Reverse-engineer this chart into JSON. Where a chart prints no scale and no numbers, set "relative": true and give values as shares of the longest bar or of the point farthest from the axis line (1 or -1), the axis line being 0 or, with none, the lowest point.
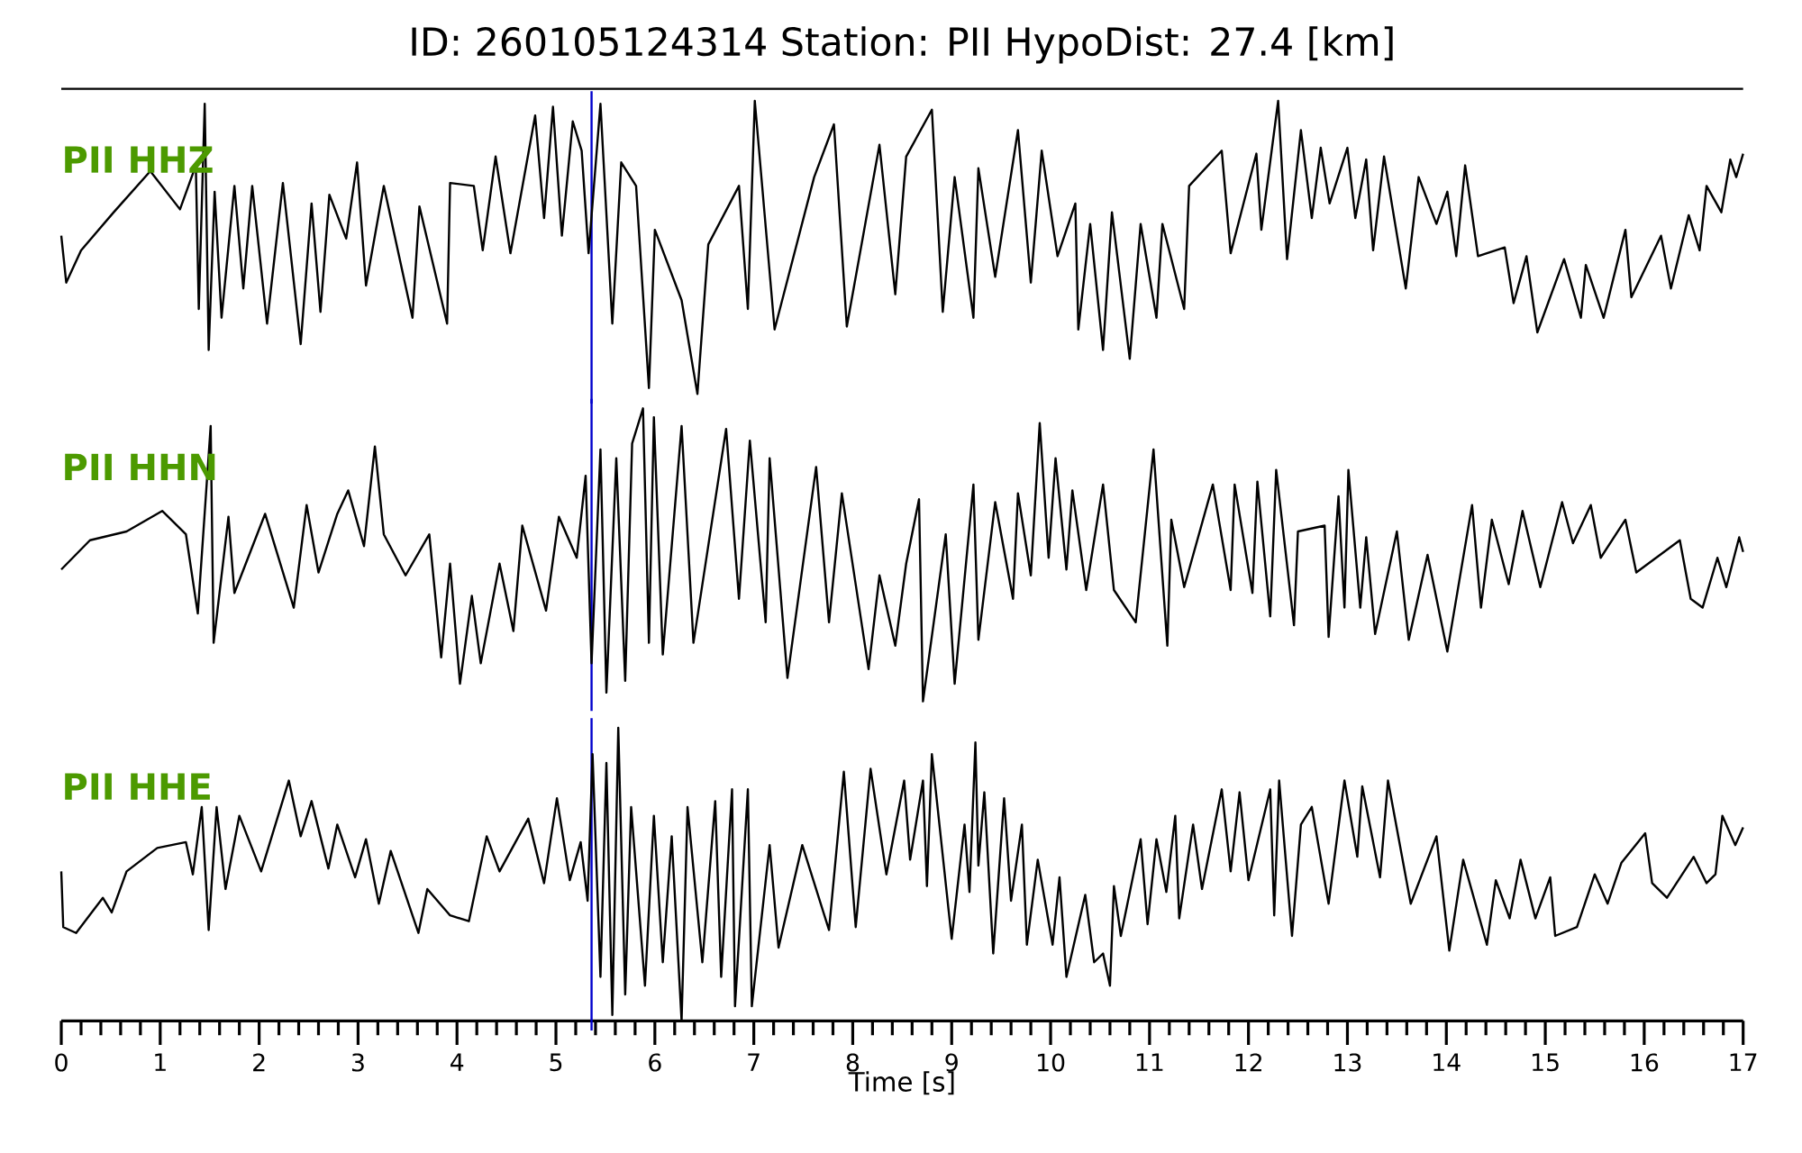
{
  "chart_data": [
    {
      "type": "line",
      "title": "ID: 260105124314   Station: PII   HypoDist:    27.4 [km]",
      "relative": true,
      "xlim": [
        0,
        17
      ],
      "tick_labels": false,
      "x": [
        0,
        0.05,
        0.2,
        0.53,
        0.9,
        1.2,
        1.36,
        1.39,
        1.45,
        1.49,
        1.55,
        1.62,
        1.75,
        1.84,
        1.93,
        2.08,
        2.24,
        2.42,
        2.53,
        2.62,
        2.71,
        2.88,
        2.99,
        3.08,
        3.26,
        3.55,
        3.62,
        3.9,
        3.93,
        4.17,
        4.26,
        4.39,
        4.54,
        4.79,
        4.88,
        4.97,
        5.06,
        5.17,
        5.26,
        5.33,
        5.45,
        5.57,
        5.66,
        5.81,
        5.94,
        6.0,
        6.27,
        6.43,
        6.54,
        6.85,
        6.94,
        7.01,
        7.21,
        7.61,
        7.81,
        7.94,
        8.27,
        8.43,
        8.54,
        8.8,
        8.91,
        9.03,
        9.22,
        9.27,
        9.44,
        9.67,
        9.8,
        9.91,
        10.07,
        10.25,
        10.28,
        10.4,
        10.53,
        10.62,
        10.8,
        10.91,
        11.07,
        11.13,
        11.35,
        11.4,
        11.73,
        11.82,
        12.08,
        12.13,
        12.3,
        12.39,
        12.53,
        12.64,
        12.73,
        12.82,
        13.0,
        13.08,
        13.19,
        13.26,
        13.37,
        13.59,
        13.72,
        13.9,
        14.01,
        14.1,
        14.19,
        14.32,
        14.59,
        14.68,
        14.81,
        14.92,
        15.19,
        15.36,
        15.41,
        15.59,
        15.81,
        15.87,
        16.17,
        16.27,
        16.45,
        16.56,
        16.63,
        16.78,
        16.87,
        16.93,
        17.0
      ],
      "series": [
        {
          "name": "PII HHZ",
          "color": "#000000",
          "values": [
            0.54,
            0.38,
            0.49,
            0.62,
            0.76,
            0.63,
            0.78,
            0.29,
            0.99,
            0.15,
            0.69,
            0.26,
            0.71,
            0.36,
            0.71,
            0.24,
            0.72,
            0.17,
            0.65,
            0.28,
            0.68,
            0.53,
            0.79,
            0.37,
            0.71,
            0.26,
            0.64,
            0.24,
            0.72,
            0.71,
            0.49,
            0.81,
            0.48,
            0.95,
            0.6,
            0.98,
            0.54,
            0.93,
            0.83,
            0.48,
            0.99,
            0.24,
            0.79,
            0.71,
            0.02,
            0.56,
            0.32,
            0,
            0.51,
            0.71,
            0.29,
            1,
            0.22,
            0.74,
            0.92,
            0.23,
            0.85,
            0.34,
            0.81,
            0.97,
            0.28,
            0.74,
            0.26,
            0.77,
            0.4,
            0.9,
            0.38,
            0.83,
            0.47,
            0.65,
            0.22,
            0.58,
            0.15,
            0.62,
            0.12,
            0.58,
            0.26,
            0.58,
            0.29,
            0.71,
            0.83,
            0.48,
            0.82,
            0.56,
            1,
            0.46,
            0.9,
            0.6,
            0.84,
            0.65,
            0.84,
            0.6,
            0.8,
            0.49,
            0.81,
            0.36,
            0.74,
            0.58,
            0.69,
            0.47,
            0.78,
            0.47,
            0.5,
            0.31,
            0.47,
            0.21,
            0.46,
            0.26,
            0.44,
            0.26,
            0.56,
            0.33,
            0.54,
            0.36,
            0.61,
            0.49,
            0.71,
            0.62,
            0.8,
            0.74,
            0.82
          ]
        }
      ],
      "ref_lines": [
        {
          "axis": "x",
          "value": 5.36,
          "color": "#0000cc"
        }
      ]
    },
    {
      "type": "line",
      "relative": true,
      "xlim": [
        0,
        17
      ],
      "tick_labels": false,
      "x": [
        0,
        0.29,
        0.66,
        1.02,
        1.26,
        1.38,
        1.51,
        1.54,
        1.69,
        1.75,
        2.06,
        2.35,
        2.48,
        2.6,
        2.79,
        2.9,
        3.06,
        3.17,
        3.26,
        3.48,
        3.72,
        3.84,
        3.93,
        4.03,
        4.15,
        4.24,
        4.43,
        4.57,
        4.66,
        4.9,
        5.03,
        5.21,
        5.3,
        5.36,
        5.45,
        5.51,
        5.61,
        5.7,
        5.77,
        5.88,
        5.94,
        5.99,
        6.08,
        6.27,
        6.39,
        6.72,
        6.85,
        6.96,
        7.12,
        7.16,
        7.34,
        7.63,
        7.76,
        7.89,
        8.16,
        8.27,
        8.43,
        8.54,
        8.67,
        8.71,
        8.94,
        9.03,
        9.22,
        9.27,
        9.44,
        9.62,
        9.67,
        9.8,
        9.89,
        9.98,
        10.05,
        10.16,
        10.22,
        10.36,
        10.53,
        10.64,
        10.86,
        11.04,
        11.18,
        11.22,
        11.35,
        11.64,
        11.82,
        11.86,
        12.04,
        12.09,
        12.22,
        12.28,
        12.46,
        12.5,
        12.77,
        12.81,
        12.91,
        12.97,
        13.01,
        13.13,
        13.19,
        13.28,
        13.5,
        13.62,
        13.81,
        14.01,
        14.26,
        14.35,
        14.46,
        14.63,
        14.77,
        14.95,
        15.17,
        15.28,
        15.46,
        15.56,
        15.81,
        15.92,
        16.36,
        16.47,
        16.59,
        16.74,
        16.83,
        16.96,
        17
      ],
      "series": [
        {
          "name": "PII HHN",
          "color": "#000000",
          "values": [
            0.45,
            0.55,
            0.58,
            0.65,
            0.57,
            0.3,
            0.94,
            0.2,
            0.63,
            0.37,
            0.64,
            0.32,
            0.67,
            0.44,
            0.64,
            0.72,
            0.53,
            0.87,
            0.57,
            0.43,
            0.57,
            0.15,
            0.47,
            0.06,
            0.36,
            0.13,
            0.47,
            0.24,
            0.6,
            0.31,
            0.63,
            0.49,
            0.77,
            0.13,
            0.86,
            0.03,
            0.83,
            0.07,
            0.88,
            1,
            0.2,
            0.97,
            0.16,
            0.94,
            0.2,
            0.93,
            0.35,
            0.89,
            0.27,
            0.83,
            0.08,
            0.8,
            0.27,
            0.71,
            0.11,
            0.43,
            0.19,
            0.47,
            0.69,
            0,
            0.57,
            0.06,
            0.74,
            0.21,
            0.68,
            0.35,
            0.71,
            0.43,
            0.95,
            0.49,
            0.83,
            0.45,
            0.72,
            0.38,
            0.74,
            0.38,
            0.27,
            0.86,
            0.19,
            0.62,
            0.39,
            0.74,
            0.38,
            0.74,
            0.37,
            0.75,
            0.29,
            0.79,
            0.26,
            0.58,
            0.6,
            0.22,
            0.7,
            0.32,
            0.79,
            0.32,
            0.56,
            0.23,
            0.58,
            0.21,
            0.5,
            0.17,
            0.67,
            0.32,
            0.62,
            0.4,
            0.65,
            0.39,
            0.68,
            0.54,
            0.67,
            0.49,
            0.62,
            0.44,
            0.55,
            0.35,
            0.32,
            0.49,
            0.39,
            0.56,
            0.51
          ]
        }
      ],
      "ref_lines": [
        {
          "axis": "x",
          "value": 5.36,
          "color": "#0000cc"
        }
      ]
    },
    {
      "type": "line",
      "relative": true,
      "xlabel": "Time [s]",
      "xlim": [
        0,
        17
      ],
      "xticks": [
        0,
        1,
        2,
        3,
        4,
        5,
        6,
        7,
        8,
        9,
        10,
        11,
        12,
        13,
        14,
        15,
        16,
        17
      ],
      "tick_labels": "x",
      "x": [
        0,
        0.02,
        0.15,
        0.42,
        0.51,
        0.66,
        0.97,
        1.26,
        1.33,
        1.42,
        1.49,
        1.57,
        1.66,
        1.8,
        2.02,
        2.3,
        2.42,
        2.53,
        2.7,
        2.79,
        2.97,
        3.08,
        3.21,
        3.33,
        3.61,
        3.7,
        3.93,
        4.12,
        4.3,
        4.43,
        4.72,
        4.88,
        5.01,
        5.14,
        5.25,
        5.32,
        5.37,
        5.45,
        5.51,
        5.57,
        5.63,
        5.7,
        5.76,
        5.9,
        5.99,
        6.08,
        6.17,
        6.27,
        6.33,
        6.48,
        6.61,
        6.67,
        6.78,
        6.81,
        6.94,
        6.98,
        7.16,
        7.25,
        7.49,
        7.76,
        7.91,
        8.03,
        8.18,
        8.34,
        8.52,
        8.58,
        8.71,
        8.75,
        8.8,
        9.0,
        9.13,
        9.18,
        9.24,
        9.27,
        9.33,
        9.42,
        9.53,
        9.6,
        9.71,
        9.76,
        9.87,
        10.02,
        10.09,
        10.16,
        10.35,
        10.44,
        10.53,
        10.6,
        10.64,
        10.71,
        10.91,
        10.98,
        11.07,
        11.17,
        11.26,
        11.3,
        11.44,
        11.53,
        11.73,
        11.82,
        11.91,
        12.0,
        12.22,
        12.26,
        12.31,
        12.44,
        12.53,
        12.64,
        12.81,
        12.97,
        13.1,
        13.15,
        13.33,
        13.41,
        13.64,
        13.9,
        14.03,
        14.17,
        14.41,
        14.5,
        14.64,
        14.75,
        14.9,
        15.05,
        15.1,
        15.32,
        15.5,
        15.63,
        15.77,
        16.01,
        16.08,
        16.23,
        16.5,
        16.63,
        16.72,
        16.79,
        16.92,
        17
      ],
      "series": [
        {
          "name": "PII HHE",
          "color": "#000000",
          "values": [
            0.51,
            0.32,
            0.3,
            0.42,
            0.37,
            0.51,
            0.59,
            0.61,
            0.5,
            0.73,
            0.31,
            0.73,
            0.45,
            0.7,
            0.51,
            0.82,
            0.63,
            0.75,
            0.52,
            0.67,
            0.49,
            0.62,
            0.4,
            0.58,
            0.3,
            0.45,
            0.36,
            0.34,
            0.63,
            0.51,
            0.69,
            0.47,
            0.76,
            0.48,
            0.61,
            0.41,
            0.91,
            0.15,
            0.88,
            0.02,
            1,
            0.09,
            0.73,
            0.12,
            0.7,
            0.2,
            0.63,
            0,
            0.73,
            0.2,
            0.75,
            0.15,
            0.79,
            0.05,
            0.79,
            0.05,
            0.6,
            0.25,
            0.6,
            0.31,
            0.85,
            0.32,
            0.86,
            0.5,
            0.82,
            0.55,
            0.82,
            0.46,
            0.91,
            0.28,
            0.67,
            0.44,
            0.95,
            0.53,
            0.78,
            0.23,
            0.76,
            0.41,
            0.67,
            0.26,
            0.55,
            0.26,
            0.49,
            0.15,
            0.43,
            0.2,
            0.23,
            0.12,
            0.46,
            0.29,
            0.62,
            0.33,
            0.62,
            0.44,
            0.7,
            0.35,
            0.67,
            0.45,
            0.79,
            0.51,
            0.78,
            0.48,
            0.79,
            0.36,
            0.82,
            0.29,
            0.67,
            0.73,
            0.4,
            0.82,
            0.56,
            0.8,
            0.49,
            0.82,
            0.4,
            0.63,
            0.24,
            0.55,
            0.26,
            0.48,
            0.35,
            0.55,
            0.35,
            0.49,
            0.29,
            0.32,
            0.5,
            0.4,
            0.54,
            0.64,
            0.47,
            0.42,
            0.56,
            0.47,
            0.5,
            0.7,
            0.6,
            0.66
          ]
        }
      ],
      "ref_lines": [
        {
          "axis": "x",
          "value": 5.36,
          "color": "#0000cc"
        }
      ]
    }
  ]
}
